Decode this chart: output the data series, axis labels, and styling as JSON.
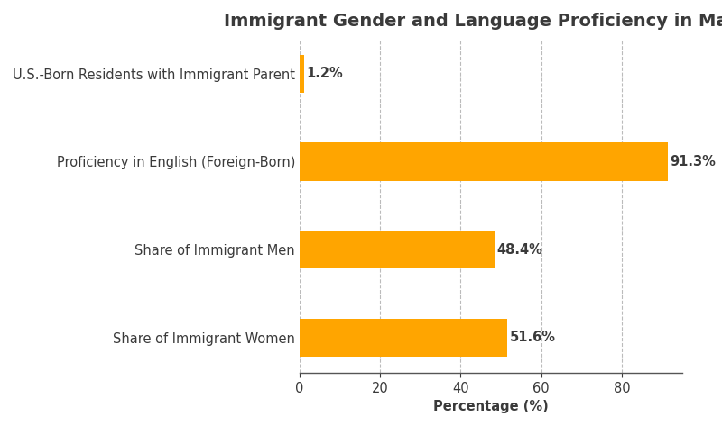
{
  "title": "Immigrant Gender and Language Proficiency in Maine",
  "categories": [
    "Share of Immigrant Women",
    "Share of Immigrant Men",
    "Proficiency in English (Foreign-Born)",
    "U.S.-Born Residents with Immigrant Parent"
  ],
  "values": [
    51.6,
    48.4,
    91.3,
    1.2
  ],
  "bar_color": "#FFA500",
  "label_color": "#3a3a3a",
  "xlabel": "Percentage (%)",
  "xlim": [
    0,
    95
  ],
  "xticks": [
    0,
    20,
    40,
    60,
    80
  ],
  "background_color": "#ffffff",
  "grid_color": "#bbbbbb",
  "title_fontsize": 14,
  "label_fontsize": 10.5,
  "tick_fontsize": 10.5,
  "value_fontsize": 10.5,
  "bar_height": 0.65,
  "figwidth": 8.0,
  "figheight": 4.73,
  "dpi": 100
}
